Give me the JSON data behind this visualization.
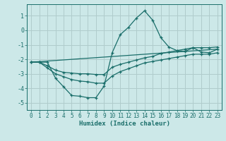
{
  "title": "",
  "xlabel": "Humidex (Indice chaleur)",
  "ylabel": "",
  "xlim": [
    -0.5,
    23.5
  ],
  "ylim": [
    -5.5,
    1.8
  ],
  "xticks": [
    0,
    1,
    2,
    3,
    4,
    5,
    6,
    7,
    8,
    9,
    10,
    11,
    12,
    13,
    14,
    15,
    16,
    17,
    18,
    19,
    20,
    21,
    22,
    23
  ],
  "yticks": [
    -5,
    -4,
    -3,
    -2,
    -1,
    0,
    1
  ],
  "bg_color": "#cce8e8",
  "grid_color": "#b0cccc",
  "line_color": "#1a6e6a",
  "line1_x": [
    0,
    1,
    2,
    3,
    4,
    5,
    6,
    7,
    8,
    9,
    10,
    11,
    12,
    13,
    14,
    15,
    16,
    17,
    18,
    19,
    20,
    21,
    22,
    23
  ],
  "line1_y": [
    -2.2,
    -2.2,
    -2.2,
    -3.3,
    -3.9,
    -4.5,
    -4.55,
    -4.65,
    -4.65,
    -3.85,
    -1.55,
    -0.3,
    0.2,
    0.85,
    1.35,
    0.7,
    -0.5,
    -1.15,
    -1.4,
    -1.45,
    -1.2,
    -1.5,
    -1.55,
    -1.3
  ],
  "line2_x": [
    0,
    1,
    2,
    3,
    4,
    5,
    6,
    7,
    8,
    9,
    10,
    11,
    12,
    13,
    14,
    15,
    16,
    17,
    18,
    19,
    20,
    21,
    22,
    23
  ],
  "line2_y": [
    -2.2,
    -2.2,
    -2.45,
    -2.75,
    -2.9,
    -2.95,
    -3.0,
    -3.0,
    -3.05,
    -3.05,
    -2.55,
    -2.35,
    -2.2,
    -2.05,
    -1.9,
    -1.8,
    -1.6,
    -1.5,
    -1.4,
    -1.3,
    -1.2,
    -1.2,
    -1.2,
    -1.15
  ],
  "line3_x": [
    0,
    1,
    2,
    3,
    4,
    5,
    6,
    7,
    8,
    9,
    10,
    11,
    12,
    13,
    14,
    15,
    16,
    17,
    18,
    19,
    20,
    21,
    22,
    23
  ],
  "line3_y": [
    -2.2,
    -2.2,
    -2.6,
    -3.0,
    -3.2,
    -3.4,
    -3.5,
    -3.55,
    -3.65,
    -3.65,
    -3.15,
    -2.85,
    -2.65,
    -2.45,
    -2.25,
    -2.15,
    -2.05,
    -1.95,
    -1.85,
    -1.75,
    -1.65,
    -1.65,
    -1.65,
    -1.55
  ],
  "line4_x": [
    0,
    23
  ],
  "line4_y": [
    -2.2,
    -1.3
  ]
}
